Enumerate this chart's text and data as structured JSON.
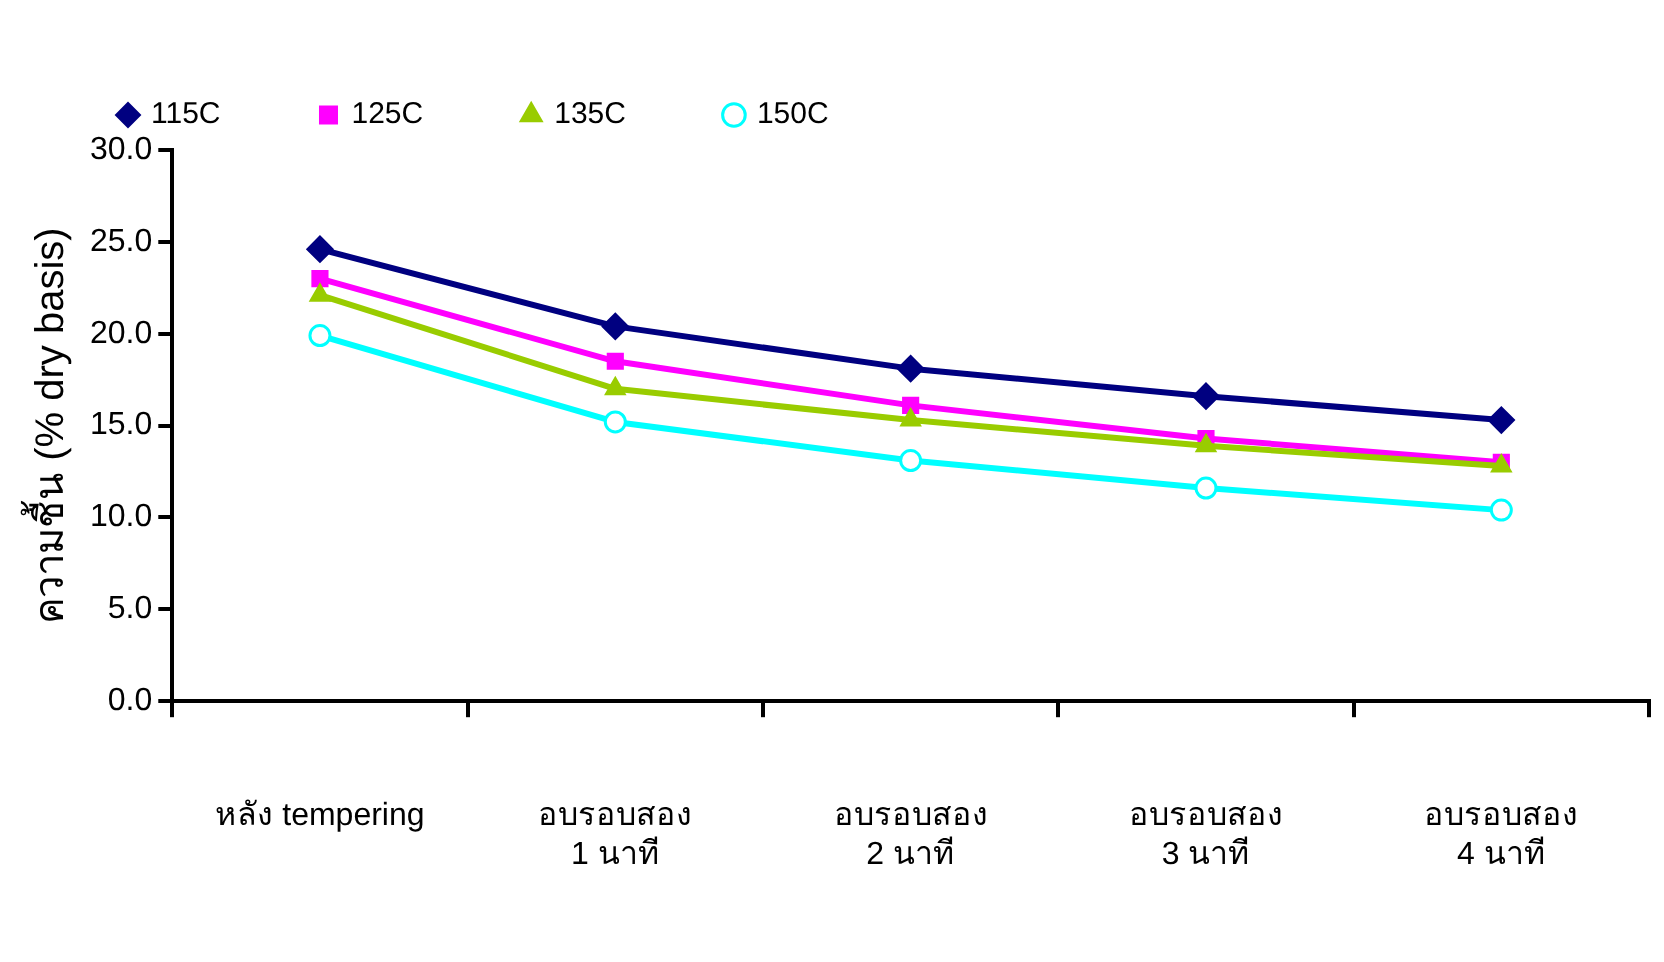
{
  "chart_data": {
    "type": "line",
    "ylabel": "ความชื้น (% dry basis)",
    "categories": [
      "หลัง tempering",
      "อบรอบสอง\n1 นาที",
      "อบรอบสอง\n2 นาที",
      "อบรอบสอง\n3 นาที",
      "อบรอบสอง\n4 นาที"
    ],
    "series": [
      {
        "name": "115C",
        "color": "#000080",
        "marker": "diamond",
        "values": [
          24.6,
          20.4,
          18.1,
          16.6,
          15.3
        ]
      },
      {
        "name": "125C",
        "color": "#ff00ff",
        "marker": "square",
        "values": [
          23.0,
          18.5,
          16.1,
          14.3,
          13.0
        ]
      },
      {
        "name": "135C",
        "color": "#99cc00",
        "marker": "triangle",
        "values": [
          22.1,
          17.0,
          15.3,
          13.9,
          12.8
        ]
      },
      {
        "name": "150C",
        "color": "#00ffff",
        "marker": "circle",
        "values": [
          19.9,
          15.2,
          13.1,
          11.6,
          10.4
        ]
      }
    ],
    "ylim": [
      0,
      30
    ],
    "yticks": [
      {
        "value": 0,
        "label": "0.0"
      },
      {
        "value": 5,
        "label": "5.0"
      },
      {
        "value": 10,
        "label": "10.0"
      },
      {
        "value": 15,
        "label": "15.0"
      },
      {
        "value": 20,
        "label": "20.0"
      },
      {
        "value": 25,
        "label": "25.0"
      },
      {
        "value": 30,
        "label": "30.0"
      }
    ],
    "grid": false,
    "legend": "top",
    "line_style": "solid"
  }
}
